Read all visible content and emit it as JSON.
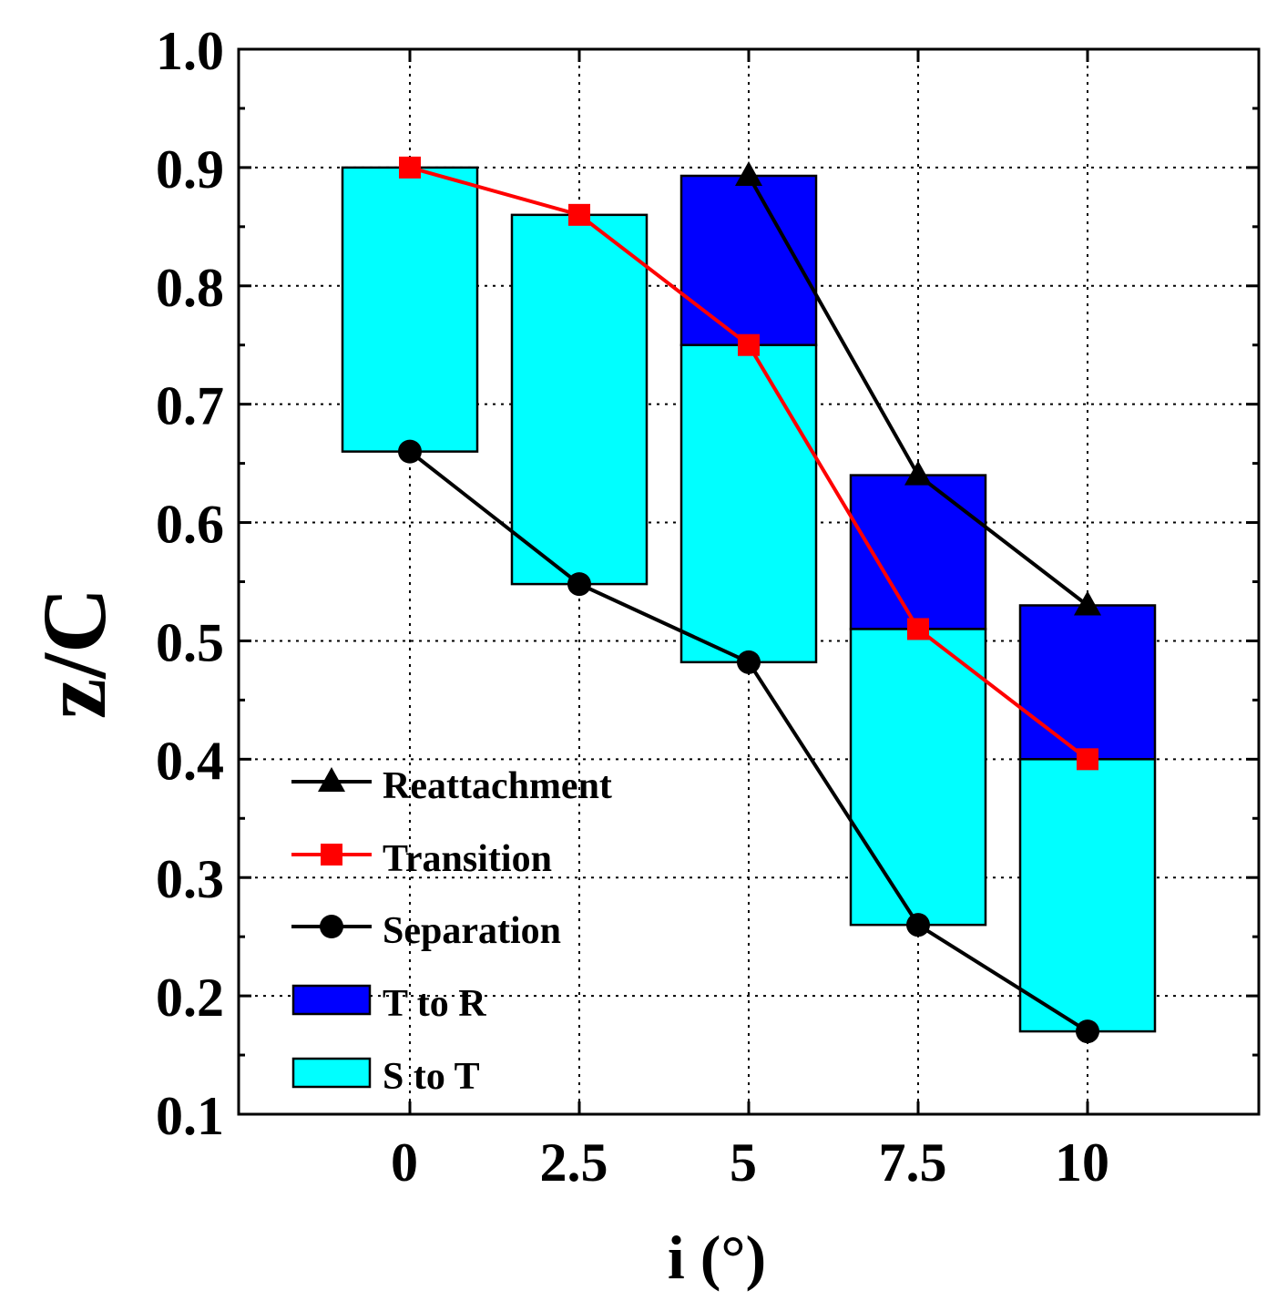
{
  "chart_data": {
    "type": "floating-bar-with-lines",
    "title": "",
    "xlabel": "i (°)",
    "ylabel": "z/C",
    "x_categories": [
      "0",
      "2.5",
      "5",
      "7.5",
      "10"
    ],
    "ylim": [
      0.1,
      1.0
    ],
    "y_ticks": [
      "0.1",
      "0.2",
      "0.3",
      "0.4",
      "0.5",
      "0.6",
      "0.7",
      "0.8",
      "0.9",
      "1.0"
    ],
    "grid": true,
    "legend_position": "bottom-left",
    "series": [
      {
        "name": "Reattachment",
        "kind": "line",
        "marker": "triangle",
        "color": "#000000",
        "x": [
          2,
          3,
          4
        ],
        "values": [
          0.893,
          0.64,
          0.53
        ]
      },
      {
        "name": "Transition",
        "kind": "line",
        "marker": "square",
        "color": "#ff0000",
        "x": [
          0,
          1,
          2,
          3,
          4
        ],
        "values": [
          0.9,
          0.86,
          0.75,
          0.51,
          0.4
        ]
      },
      {
        "name": "Separation",
        "kind": "line",
        "marker": "circle",
        "color": "#000000",
        "x": [
          0,
          1,
          2,
          3,
          4
        ],
        "values": [
          0.66,
          0.548,
          0.482,
          0.26,
          0.17
        ]
      }
    ],
    "bars": [
      {
        "name": "T to R",
        "color": "#0000ff",
        "ranges": [
          null,
          null,
          [
            0.75,
            0.893
          ],
          [
            0.51,
            0.64
          ],
          [
            0.4,
            0.53
          ]
        ]
      },
      {
        "name": "S to T",
        "color": "#00ffff",
        "ranges": [
          [
            0.66,
            0.9
          ],
          [
            0.548,
            0.86
          ],
          [
            0.482,
            0.75
          ],
          [
            0.26,
            0.51
          ],
          [
            0.17,
            0.4
          ]
        ]
      }
    ],
    "legend": [
      "Reattachment",
      "Transition",
      "Separation",
      "T to R",
      "S to T"
    ]
  }
}
